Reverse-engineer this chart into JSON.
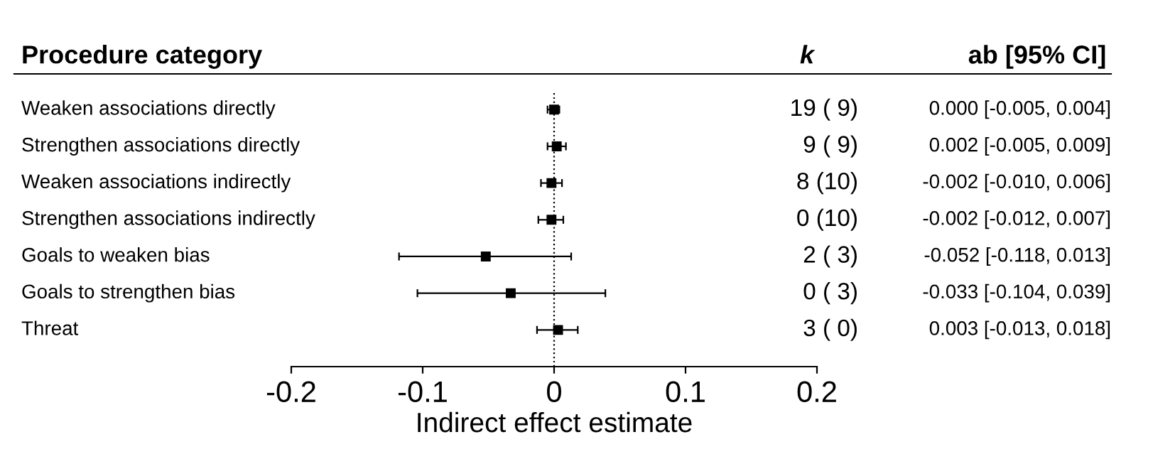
{
  "chart_data": {
    "type": "scatter",
    "orientation": "horizontal",
    "ylabel": "Procedure category",
    "xlabel": "Indirect effect estimate",
    "categories": [
      "Weaken associations directly",
      "Strengthen associations directly",
      "Weaken associations indirectly",
      "Strengthen associations indirectly",
      "Goals to weaken bias",
      "Goals to strengthen bias",
      "Threat"
    ],
    "values": [
      0.0,
      0.002,
      -0.002,
      -0.002,
      -0.052,
      -0.033,
      0.003
    ],
    "errors": [
      [
        -0.005,
        0.004
      ],
      [
        -0.005,
        0.009
      ],
      [
        -0.01,
        0.006
      ],
      [
        -0.012,
        0.007
      ],
      [
        -0.118,
        0.013
      ],
      [
        -0.104,
        0.039
      ],
      [
        -0.013,
        0.018
      ]
    ],
    "value_labels": [
      "0.000 [-0.005, 0.004]",
      "0.002 [-0.005, 0.009]",
      "-0.002 [-0.010, 0.006]",
      "-0.002 [-0.012, 0.007]",
      "-0.052 [-0.118, 0.013]",
      "-0.033 [-0.104, 0.039]",
      "0.003 [-0.013, 0.018]"
    ],
    "annotations": [
      "k",
      "ab [95% CI]",
      "19 ( 9)",
      "9 ( 9)",
      "8 (10)",
      "0 (10)",
      "2 ( 3)",
      "0 ( 3)",
      "3 ( 0)"
    ],
    "color": "#000000",
    "marker": "square",
    "xlim": [
      -0.2,
      0.2
    ],
    "xticks": [
      -0.2,
      -0.1,
      0,
      0.1,
      0.2
    ],
    "ref_lines": [
      {
        "axis": "x",
        "value": 0,
        "line_style": "dotted",
        "color": "#000000"
      }
    ],
    "grid": false
  }
}
